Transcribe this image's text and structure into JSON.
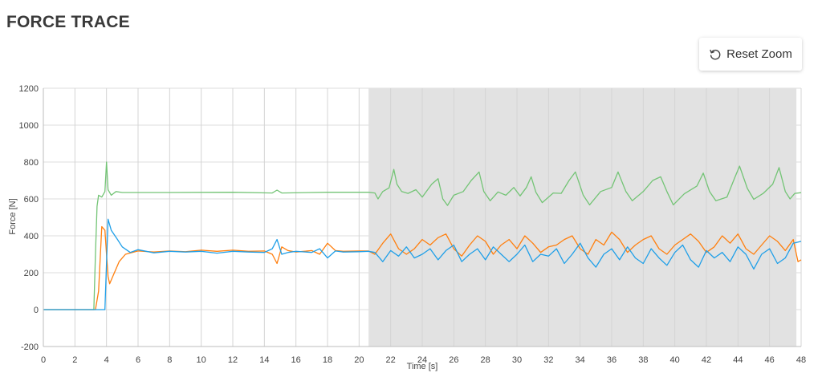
{
  "header": {
    "title": "FORCE TRACE"
  },
  "toolbar": {
    "reset_zoom_label": "Reset Zoom",
    "reset_icon": "rotate-ccw-icon"
  },
  "chart_data": {
    "type": "line",
    "title": "",
    "xlabel": "Time [s]",
    "ylabel": "Force [N]",
    "xlim": [
      0,
      48
    ],
    "ylim": [
      -200,
      1200
    ],
    "x_ticks": [
      0,
      2,
      4,
      6,
      8,
      10,
      12,
      14,
      16,
      18,
      20,
      22,
      24,
      26,
      28,
      30,
      32,
      34,
      36,
      38,
      40,
      42,
      44,
      46,
      48
    ],
    "y_ticks": [
      -200,
      0,
      200,
      400,
      600,
      800,
      1000,
      1200
    ],
    "grid": true,
    "highlight_region": {
      "x_start": 20.6,
      "x_end": 47.7,
      "color": "#e2e2e2"
    },
    "series": [
      {
        "color": "#74c476",
        "points": [
          [
            0,
            0
          ],
          [
            3.2,
            0
          ],
          [
            3.3,
            300
          ],
          [
            3.4,
            560
          ],
          [
            3.5,
            620
          ],
          [
            3.7,
            610
          ],
          [
            3.9,
            640
          ],
          [
            4.0,
            800
          ],
          [
            4.1,
            650
          ],
          [
            4.3,
            620
          ],
          [
            4.6,
            640
          ],
          [
            5,
            635
          ],
          [
            8,
            635
          ],
          [
            12,
            636
          ],
          [
            14.5,
            632
          ],
          [
            14.8,
            648
          ],
          [
            15.1,
            632
          ],
          [
            18,
            636
          ],
          [
            20.6,
            636
          ],
          [
            21.0,
            632
          ],
          [
            21.2,
            600
          ],
          [
            21.5,
            640
          ],
          [
            21.9,
            660
          ],
          [
            22.2,
            760
          ],
          [
            22.4,
            680
          ],
          [
            22.7,
            640
          ],
          [
            23.1,
            630
          ],
          [
            23.6,
            650
          ],
          [
            24.0,
            610
          ],
          [
            24.6,
            680
          ],
          [
            25.0,
            710
          ],
          [
            25.3,
            600
          ],
          [
            25.6,
            565
          ],
          [
            26.0,
            620
          ],
          [
            26.6,
            640
          ],
          [
            27.1,
            700
          ],
          [
            27.6,
            746
          ],
          [
            27.9,
            640
          ],
          [
            28.3,
            590
          ],
          [
            28.8,
            638
          ],
          [
            29.3,
            620
          ],
          [
            29.8,
            662
          ],
          [
            30.2,
            616
          ],
          [
            30.6,
            662
          ],
          [
            30.9,
            720
          ],
          [
            31.2,
            636
          ],
          [
            31.6,
            580
          ],
          [
            32.3,
            632
          ],
          [
            32.8,
            630
          ],
          [
            33.3,
            700
          ],
          [
            33.7,
            746
          ],
          [
            34.2,
            620
          ],
          [
            34.6,
            568
          ],
          [
            35.3,
            640
          ],
          [
            36.0,
            662
          ],
          [
            36.4,
            746
          ],
          [
            36.9,
            640
          ],
          [
            37.3,
            590
          ],
          [
            38.0,
            640
          ],
          [
            38.6,
            700
          ],
          [
            39.1,
            720
          ],
          [
            39.5,
            640
          ],
          [
            39.9,
            568
          ],
          [
            40.6,
            628
          ],
          [
            41.4,
            670
          ],
          [
            41.8,
            740
          ],
          [
            42.2,
            640
          ],
          [
            42.6,
            590
          ],
          [
            43.3,
            610
          ],
          [
            43.8,
            716
          ],
          [
            44.1,
            778
          ],
          [
            44.6,
            656
          ],
          [
            45.0,
            598
          ],
          [
            45.6,
            630
          ],
          [
            46.2,
            680
          ],
          [
            46.6,
            770
          ],
          [
            47.0,
            640
          ],
          [
            47.3,
            600
          ],
          [
            47.6,
            630
          ],
          [
            48,
            634
          ]
        ]
      },
      {
        "color": "#ff7f0e",
        "points": [
          [
            0,
            0
          ],
          [
            3.3,
            0
          ],
          [
            3.5,
            100
          ],
          [
            3.7,
            450
          ],
          [
            3.9,
            430
          ],
          [
            4.0,
            300
          ],
          [
            4.1,
            180
          ],
          [
            4.2,
            140
          ],
          [
            4.5,
            200
          ],
          [
            4.8,
            260
          ],
          [
            5.2,
            300
          ],
          [
            6,
            318
          ],
          [
            7,
            312
          ],
          [
            8,
            318
          ],
          [
            9,
            314
          ],
          [
            10,
            322
          ],
          [
            11,
            316
          ],
          [
            12,
            322
          ],
          [
            13,
            316
          ],
          [
            14,
            318
          ],
          [
            14.5,
            300
          ],
          [
            14.8,
            250
          ],
          [
            15.1,
            340
          ],
          [
            15.5,
            320
          ],
          [
            16,
            312
          ],
          [
            17,
            320
          ],
          [
            17.5,
            300
          ],
          [
            18,
            360
          ],
          [
            18.5,
            320
          ],
          [
            19,
            316
          ],
          [
            20,
            318
          ],
          [
            20.6,
            318
          ],
          [
            21.0,
            300
          ],
          [
            21.5,
            360
          ],
          [
            22.0,
            410
          ],
          [
            22.5,
            330
          ],
          [
            23.0,
            300
          ],
          [
            23.5,
            330
          ],
          [
            24.0,
            380
          ],
          [
            24.5,
            350
          ],
          [
            25.0,
            390
          ],
          [
            25.5,
            410
          ],
          [
            26.0,
            330
          ],
          [
            26.5,
            290
          ],
          [
            27.0,
            350
          ],
          [
            27.5,
            400
          ],
          [
            28.0,
            370
          ],
          [
            28.5,
            300
          ],
          [
            29.0,
            350
          ],
          [
            29.5,
            380
          ],
          [
            30.0,
            330
          ],
          [
            30.5,
            400
          ],
          [
            31.0,
            360
          ],
          [
            31.5,
            310
          ],
          [
            32.0,
            340
          ],
          [
            32.5,
            350
          ],
          [
            33.0,
            380
          ],
          [
            33.5,
            400
          ],
          [
            34.0,
            330
          ],
          [
            34.5,
            300
          ],
          [
            35.0,
            380
          ],
          [
            35.5,
            350
          ],
          [
            36.0,
            420
          ],
          [
            36.5,
            380
          ],
          [
            37.0,
            310
          ],
          [
            37.5,
            350
          ],
          [
            38.0,
            380
          ],
          [
            38.5,
            400
          ],
          [
            39.0,
            330
          ],
          [
            39.5,
            300
          ],
          [
            40.0,
            350
          ],
          [
            40.5,
            380
          ],
          [
            41.0,
            410
          ],
          [
            41.5,
            370
          ],
          [
            42.0,
            310
          ],
          [
            42.5,
            340
          ],
          [
            43.0,
            400
          ],
          [
            43.5,
            360
          ],
          [
            44.0,
            410
          ],
          [
            44.5,
            330
          ],
          [
            45.0,
            300
          ],
          [
            45.5,
            350
          ],
          [
            46.0,
            400
          ],
          [
            46.5,
            370
          ],
          [
            47.0,
            320
          ],
          [
            47.5,
            380
          ],
          [
            47.8,
            260
          ],
          [
            48,
            270
          ]
        ]
      },
      {
        "color": "#1f9fe8",
        "points": [
          [
            0,
            0
          ],
          [
            3.9,
            0
          ],
          [
            4.1,
            490
          ],
          [
            4.3,
            430
          ],
          [
            4.7,
            380
          ],
          [
            5.0,
            340
          ],
          [
            5.5,
            310
          ],
          [
            6,
            325
          ],
          [
            7,
            308
          ],
          [
            8,
            316
          ],
          [
            9,
            312
          ],
          [
            10,
            316
          ],
          [
            11,
            306
          ],
          [
            12,
            316
          ],
          [
            13,
            312
          ],
          [
            14,
            310
          ],
          [
            14.5,
            330
          ],
          [
            14.8,
            380
          ],
          [
            15.1,
            300
          ],
          [
            15.5,
            310
          ],
          [
            16,
            316
          ],
          [
            17,
            310
          ],
          [
            17.5,
            330
          ],
          [
            18,
            280
          ],
          [
            18.5,
            318
          ],
          [
            19,
            312
          ],
          [
            20,
            314
          ],
          [
            20.6,
            316
          ],
          [
            21.0,
            310
          ],
          [
            21.5,
            260
          ],
          [
            22.0,
            320
          ],
          [
            22.5,
            290
          ],
          [
            23.0,
            340
          ],
          [
            23.5,
            280
          ],
          [
            24.0,
            300
          ],
          [
            24.5,
            330
          ],
          [
            25.0,
            270
          ],
          [
            25.5,
            320
          ],
          [
            26.0,
            350
          ],
          [
            26.5,
            260
          ],
          [
            27.0,
            300
          ],
          [
            27.5,
            330
          ],
          [
            28.0,
            270
          ],
          [
            28.5,
            340
          ],
          [
            29.0,
            300
          ],
          [
            29.5,
            260
          ],
          [
            30.0,
            300
          ],
          [
            30.5,
            350
          ],
          [
            31.0,
            260
          ],
          [
            31.5,
            300
          ],
          [
            32.0,
            290
          ],
          [
            32.5,
            330
          ],
          [
            33.0,
            250
          ],
          [
            33.5,
            300
          ],
          [
            34.0,
            360
          ],
          [
            34.5,
            280
          ],
          [
            35.0,
            230
          ],
          [
            35.5,
            300
          ],
          [
            36.0,
            330
          ],
          [
            36.5,
            270
          ],
          [
            37.0,
            340
          ],
          [
            37.5,
            280
          ],
          [
            38.0,
            250
          ],
          [
            38.5,
            330
          ],
          [
            39.0,
            280
          ],
          [
            39.5,
            240
          ],
          [
            40.0,
            310
          ],
          [
            40.5,
            350
          ],
          [
            41.0,
            270
          ],
          [
            41.5,
            230
          ],
          [
            42.0,
            320
          ],
          [
            42.5,
            280
          ],
          [
            43.0,
            310
          ],
          [
            43.5,
            260
          ],
          [
            44.0,
            340
          ],
          [
            44.5,
            300
          ],
          [
            45.0,
            220
          ],
          [
            45.5,
            300
          ],
          [
            46.0,
            330
          ],
          [
            46.5,
            250
          ],
          [
            47.0,
            280
          ],
          [
            47.5,
            360
          ],
          [
            48,
            370
          ]
        ]
      }
    ]
  }
}
